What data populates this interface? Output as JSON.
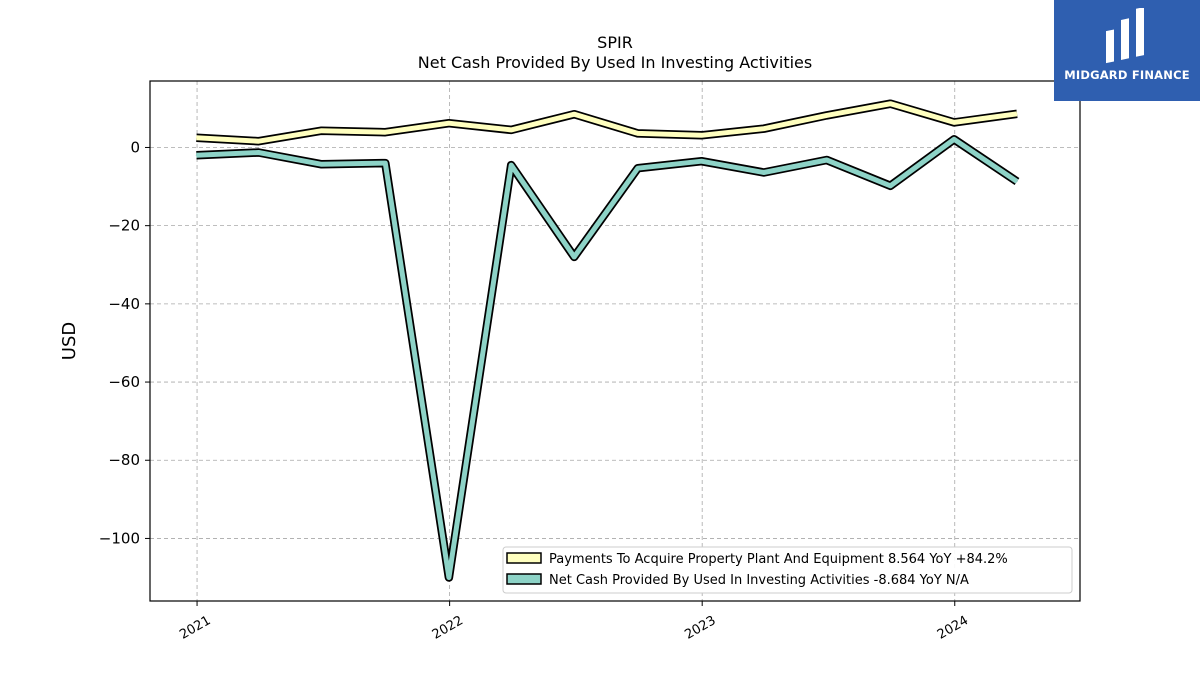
{
  "brand": {
    "name": "MIDGARD FINANCE",
    "bg_color": "#2f5fb0",
    "icon": "midgard-logo-icon"
  },
  "chart_data": {
    "type": "line",
    "title": "SPIR",
    "subtitle": "Net Cash Provided By Used In Investing Activities",
    "xlabel": "",
    "ylabel": "USD",
    "x_ticks": [
      "2021",
      "2022",
      "2023",
      "2024"
    ],
    "y_ticks": [
      0,
      -20,
      -40,
      -60,
      -80,
      -100
    ],
    "ylim": [
      -116,
      17
    ],
    "grid": true,
    "legend_position": "lower-right",
    "x": [
      "2020-12-31",
      "2021-03-31",
      "2021-06-30",
      "2021-09-30",
      "2021-12-31",
      "2022-03-31",
      "2022-06-30",
      "2022-09-30",
      "2022-12-31",
      "2023-03-31",
      "2023-06-30",
      "2023-09-30",
      "2023-12-31",
      "2024-03-31"
    ],
    "series": [
      {
        "name": "Payments To Acquire Property Plant And Equipment  8.564 YoY +84.2%",
        "color": "#ffffbf",
        "values": [
          2.5,
          1.6,
          4.3,
          3.9,
          6.2,
          4.5,
          8.5,
          3.6,
          3.1,
          4.8,
          8.2,
          11.2,
          6.4,
          8.6
        ]
      },
      {
        "name": "Net Cash Provided By Used In Investing Activities  -8.684 YoY N/A",
        "color": "#8dd3c7",
        "values": [
          -2.0,
          -1.3,
          -4.3,
          -4.0,
          -110.0,
          -4.5,
          -28.0,
          -5.3,
          -3.5,
          -6.4,
          -3.2,
          -9.8,
          2.1,
          -8.7
        ]
      }
    ]
  }
}
